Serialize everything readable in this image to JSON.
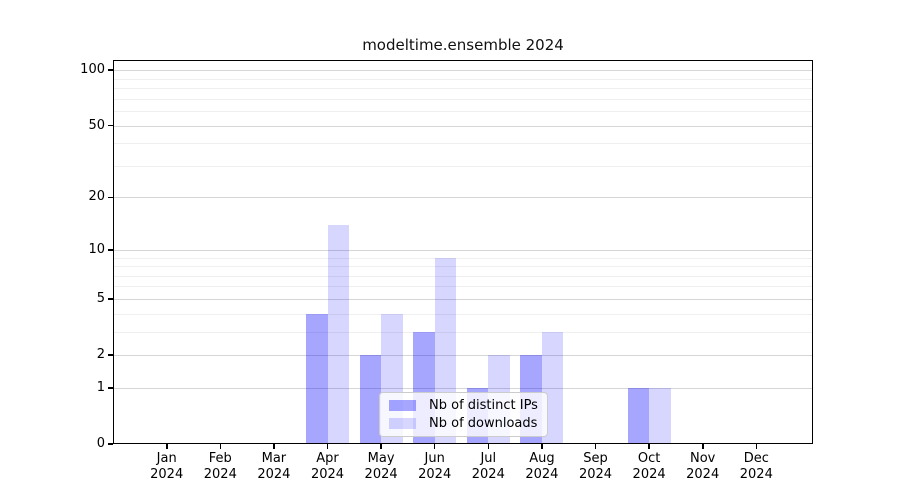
{
  "chart_data": {
    "type": "bar",
    "title": "modeltime.ensemble 2024",
    "x_categories": [
      "Jan",
      "Feb",
      "Mar",
      "Apr",
      "May",
      "Jun",
      "Jul",
      "Aug",
      "Sep",
      "Oct",
      "Nov",
      "Dec"
    ],
    "x_year_label": "2024",
    "series": [
      {
        "name": "Nb of distinct IPs",
        "values": [
          0,
          0,
          0,
          4,
          2,
          3,
          1,
          2,
          0,
          1,
          0,
          0
        ],
        "color": "rgba(0,0,255,0.35)"
      },
      {
        "name": "Nb of downloads",
        "values": [
          0,
          0,
          0,
          14,
          4,
          9,
          2,
          3,
          0,
          1,
          0,
          0
        ],
        "color": "rgba(0,0,255,0.16)"
      }
    ],
    "yscale": "log1p",
    "ylim": [
      0,
      113
    ],
    "y_major_ticks": [
      0,
      1,
      2,
      5,
      10,
      20,
      50,
      100
    ],
    "y_minor_gridlines": [
      3,
      4,
      6,
      7,
      8,
      9,
      30,
      40,
      60,
      70,
      80,
      90
    ],
    "grid": true,
    "legend_position": "lower center"
  },
  "colors": {
    "background": "#ffffff",
    "axis_frame": "#000000",
    "tick_text": "#000000",
    "title_text": "#111111",
    "grid_major": "#d6d6d6",
    "grid_minor": "#efefef",
    "legend_border": "#cccccc",
    "legend_background": "rgba(255,255,255,0.8)"
  }
}
